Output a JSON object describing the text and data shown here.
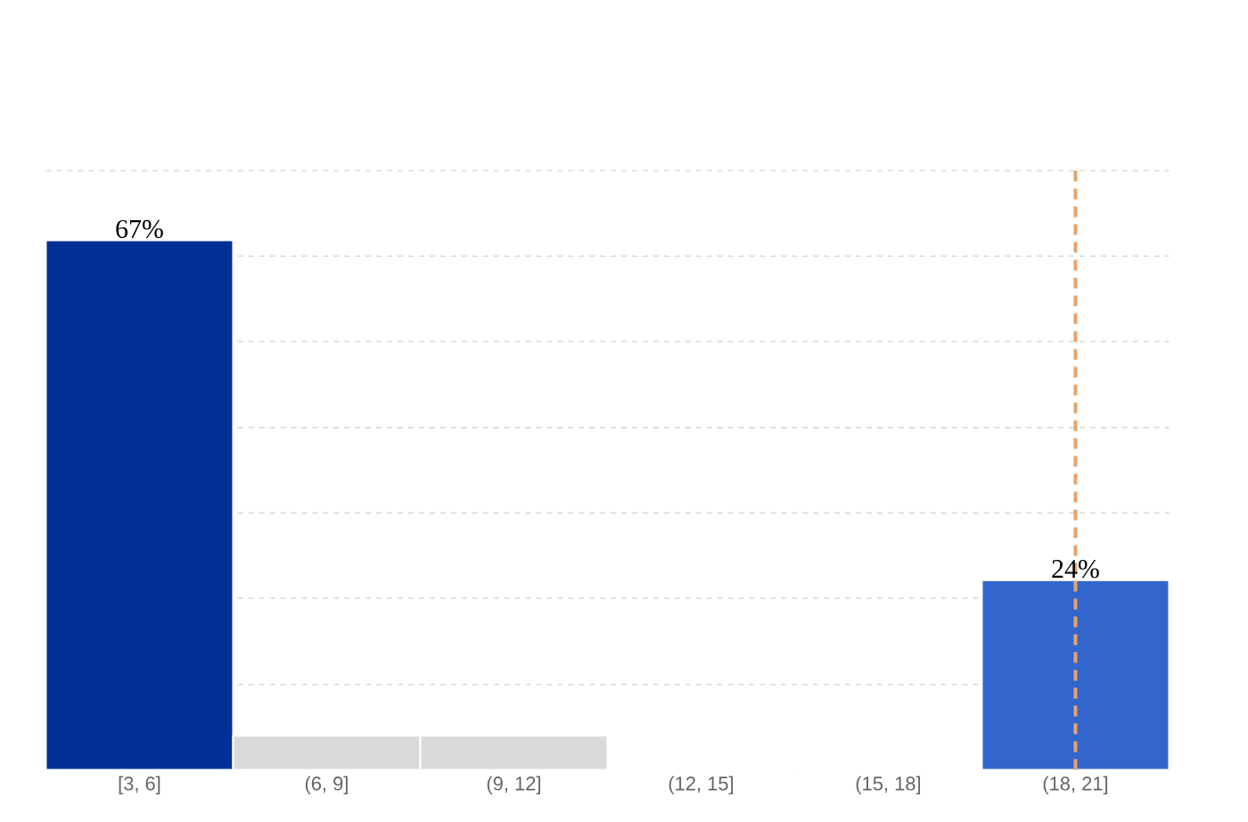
{
  "chart_data": {
    "type": "bar",
    "categories": [
      "[3, 6]",
      "(6, 9]",
      "(9, 12]",
      "(12, 15]",
      "(15, 18]",
      "(18, 21]"
    ],
    "values": [
      67,
      4.3,
      4.3,
      0,
      0,
      24
    ],
    "colors": [
      "#022f96",
      "#d9d9d9",
      "#d9d9d9",
      "#d9d9d9",
      "#d9d9d9",
      "#3366cc"
    ],
    "value_labels": [
      "67%",
      null,
      null,
      null,
      null,
      "24%"
    ],
    "ylim": [
      0,
      75.8
    ],
    "yticks": [
      {
        "value": 10.8,
        "label": null
      },
      {
        "value": 21.7,
        "label": null
      },
      {
        "value": 32.5,
        "label": null
      },
      {
        "value": 43.3,
        "label": null
      },
      {
        "value": 54.2,
        "label": null
      },
      {
        "value": 65,
        "label": null
      },
      {
        "value": 75.8,
        "label": null
      }
    ],
    "tick_labels": "x",
    "grid": "y",
    "ref_lines": [
      {
        "axis": "x",
        "value": "(18, 21]",
        "color": "#e8a36a",
        "line_style": "dashed"
      }
    ]
  }
}
